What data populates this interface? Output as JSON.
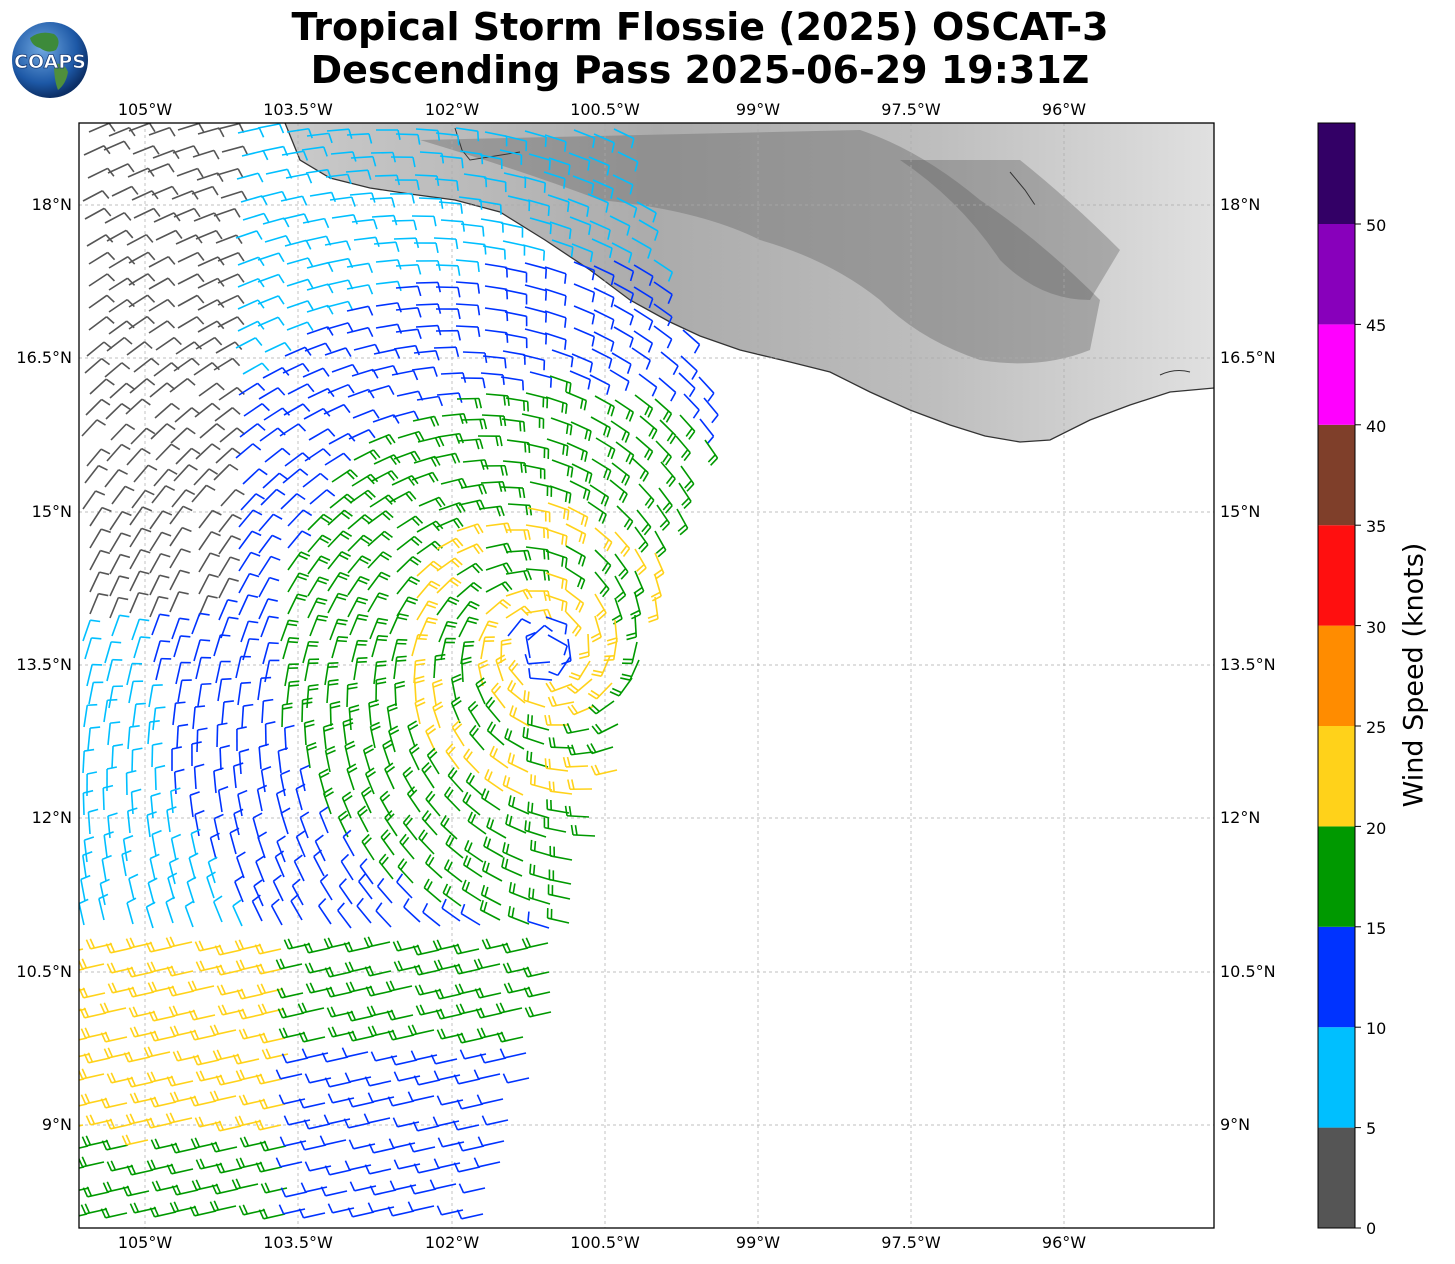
{
  "title": {
    "line1": "Tropical Storm Flossie (2025) OSCAT-3",
    "line2": "Descending Pass 2025-06-29 19:31Z"
  },
  "logo": {
    "text": "COAPS",
    "icon": "globe-logo-icon"
  },
  "map": {
    "lon_ticks": [
      "105°W",
      "103.5°W",
      "102°W",
      "100.5°W",
      "99°W",
      "97.5°W",
      "96°W"
    ],
    "lat_ticks": [
      "18°N",
      "16.5°N",
      "15°N",
      "13.5°N",
      "12°N",
      "10.5°N",
      "9°N"
    ],
    "gridlines": true,
    "land_shading": "grayscale terrain relief",
    "coastline_color": "#333333"
  },
  "colorbar": {
    "title": "Wind Speed (knots)",
    "tick_labels": [
      "0",
      "5",
      "10",
      "15",
      "20",
      "25",
      "30",
      "35",
      "40",
      "45",
      "50"
    ],
    "bins": [
      {
        "range": "0-5",
        "color": "#555555"
      },
      {
        "range": "5-10",
        "color": "#00bfff"
      },
      {
        "range": "10-15",
        "color": "#0033ff"
      },
      {
        "range": "15-20",
        "color": "#009900"
      },
      {
        "range": "20-25",
        "color": "#ffd21a"
      },
      {
        "range": "25-30",
        "color": "#ff8c00"
      },
      {
        "range": "30-35",
        "color": "#ff0f0f"
      },
      {
        "range": "35-40",
        "color": "#7f3f2a"
      },
      {
        "range": "40-45",
        "color": "#ff00ff"
      },
      {
        "range": "45-50",
        "color": "#8800bb"
      },
      {
        "range": "50+",
        "color": "#330066"
      }
    ]
  }
}
